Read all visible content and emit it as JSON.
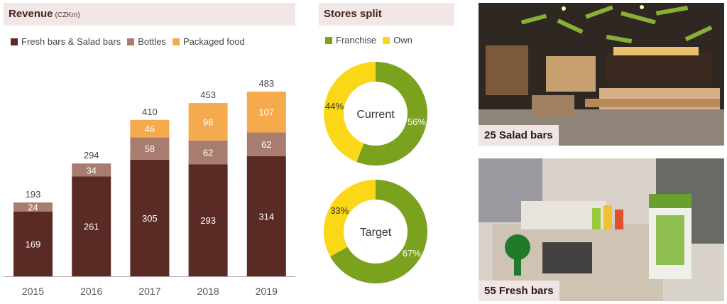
{
  "revenue": {
    "title": "Revenue",
    "unit": "(CZKm)",
    "chart_data": {
      "type": "bar",
      "stacked": true,
      "categories": [
        "2015",
        "2016",
        "2017",
        "2018",
        "2019"
      ],
      "series": [
        {
          "name": "Fresh bars & Salad bars",
          "color": "#5a2a25",
          "values": [
            169,
            261,
            305,
            293,
            314
          ]
        },
        {
          "name": "Bottles",
          "color": "#a87c6e",
          "values": [
            24,
            34,
            58,
            62,
            62
          ]
        },
        {
          "name": "Packaged food",
          "color": "#f5aa4e",
          "values": [
            0,
            0,
            46,
            98,
            107
          ]
        }
      ],
      "totals": [
        193,
        294,
        410,
        453,
        483
      ],
      "ylim": [
        0,
        500
      ],
      "grid": false,
      "legend": "top-left"
    }
  },
  "stores": {
    "title": "Stores split",
    "legend": [
      {
        "name": "Franchise",
        "color": "#7aa21f"
      },
      {
        "name": "Own",
        "color": "#fad717"
      }
    ],
    "chart_data": [
      {
        "type": "pie",
        "donut": true,
        "center_label": "Current",
        "slices": [
          {
            "name": "Franchise",
            "value": 56,
            "label": "56%"
          },
          {
            "name": "Own",
            "value": 44,
            "label": "44%"
          }
        ]
      },
      {
        "type": "pie",
        "donut": true,
        "center_label": "Target",
        "slices": [
          {
            "name": "Franchise",
            "value": 67,
            "label": "67%"
          },
          {
            "name": "Own",
            "value": 33,
            "label": "33%"
          }
        ]
      }
    ]
  },
  "photos": [
    {
      "caption": "25 Salad bars"
    },
    {
      "caption": "55 Fresh bars"
    }
  ]
}
